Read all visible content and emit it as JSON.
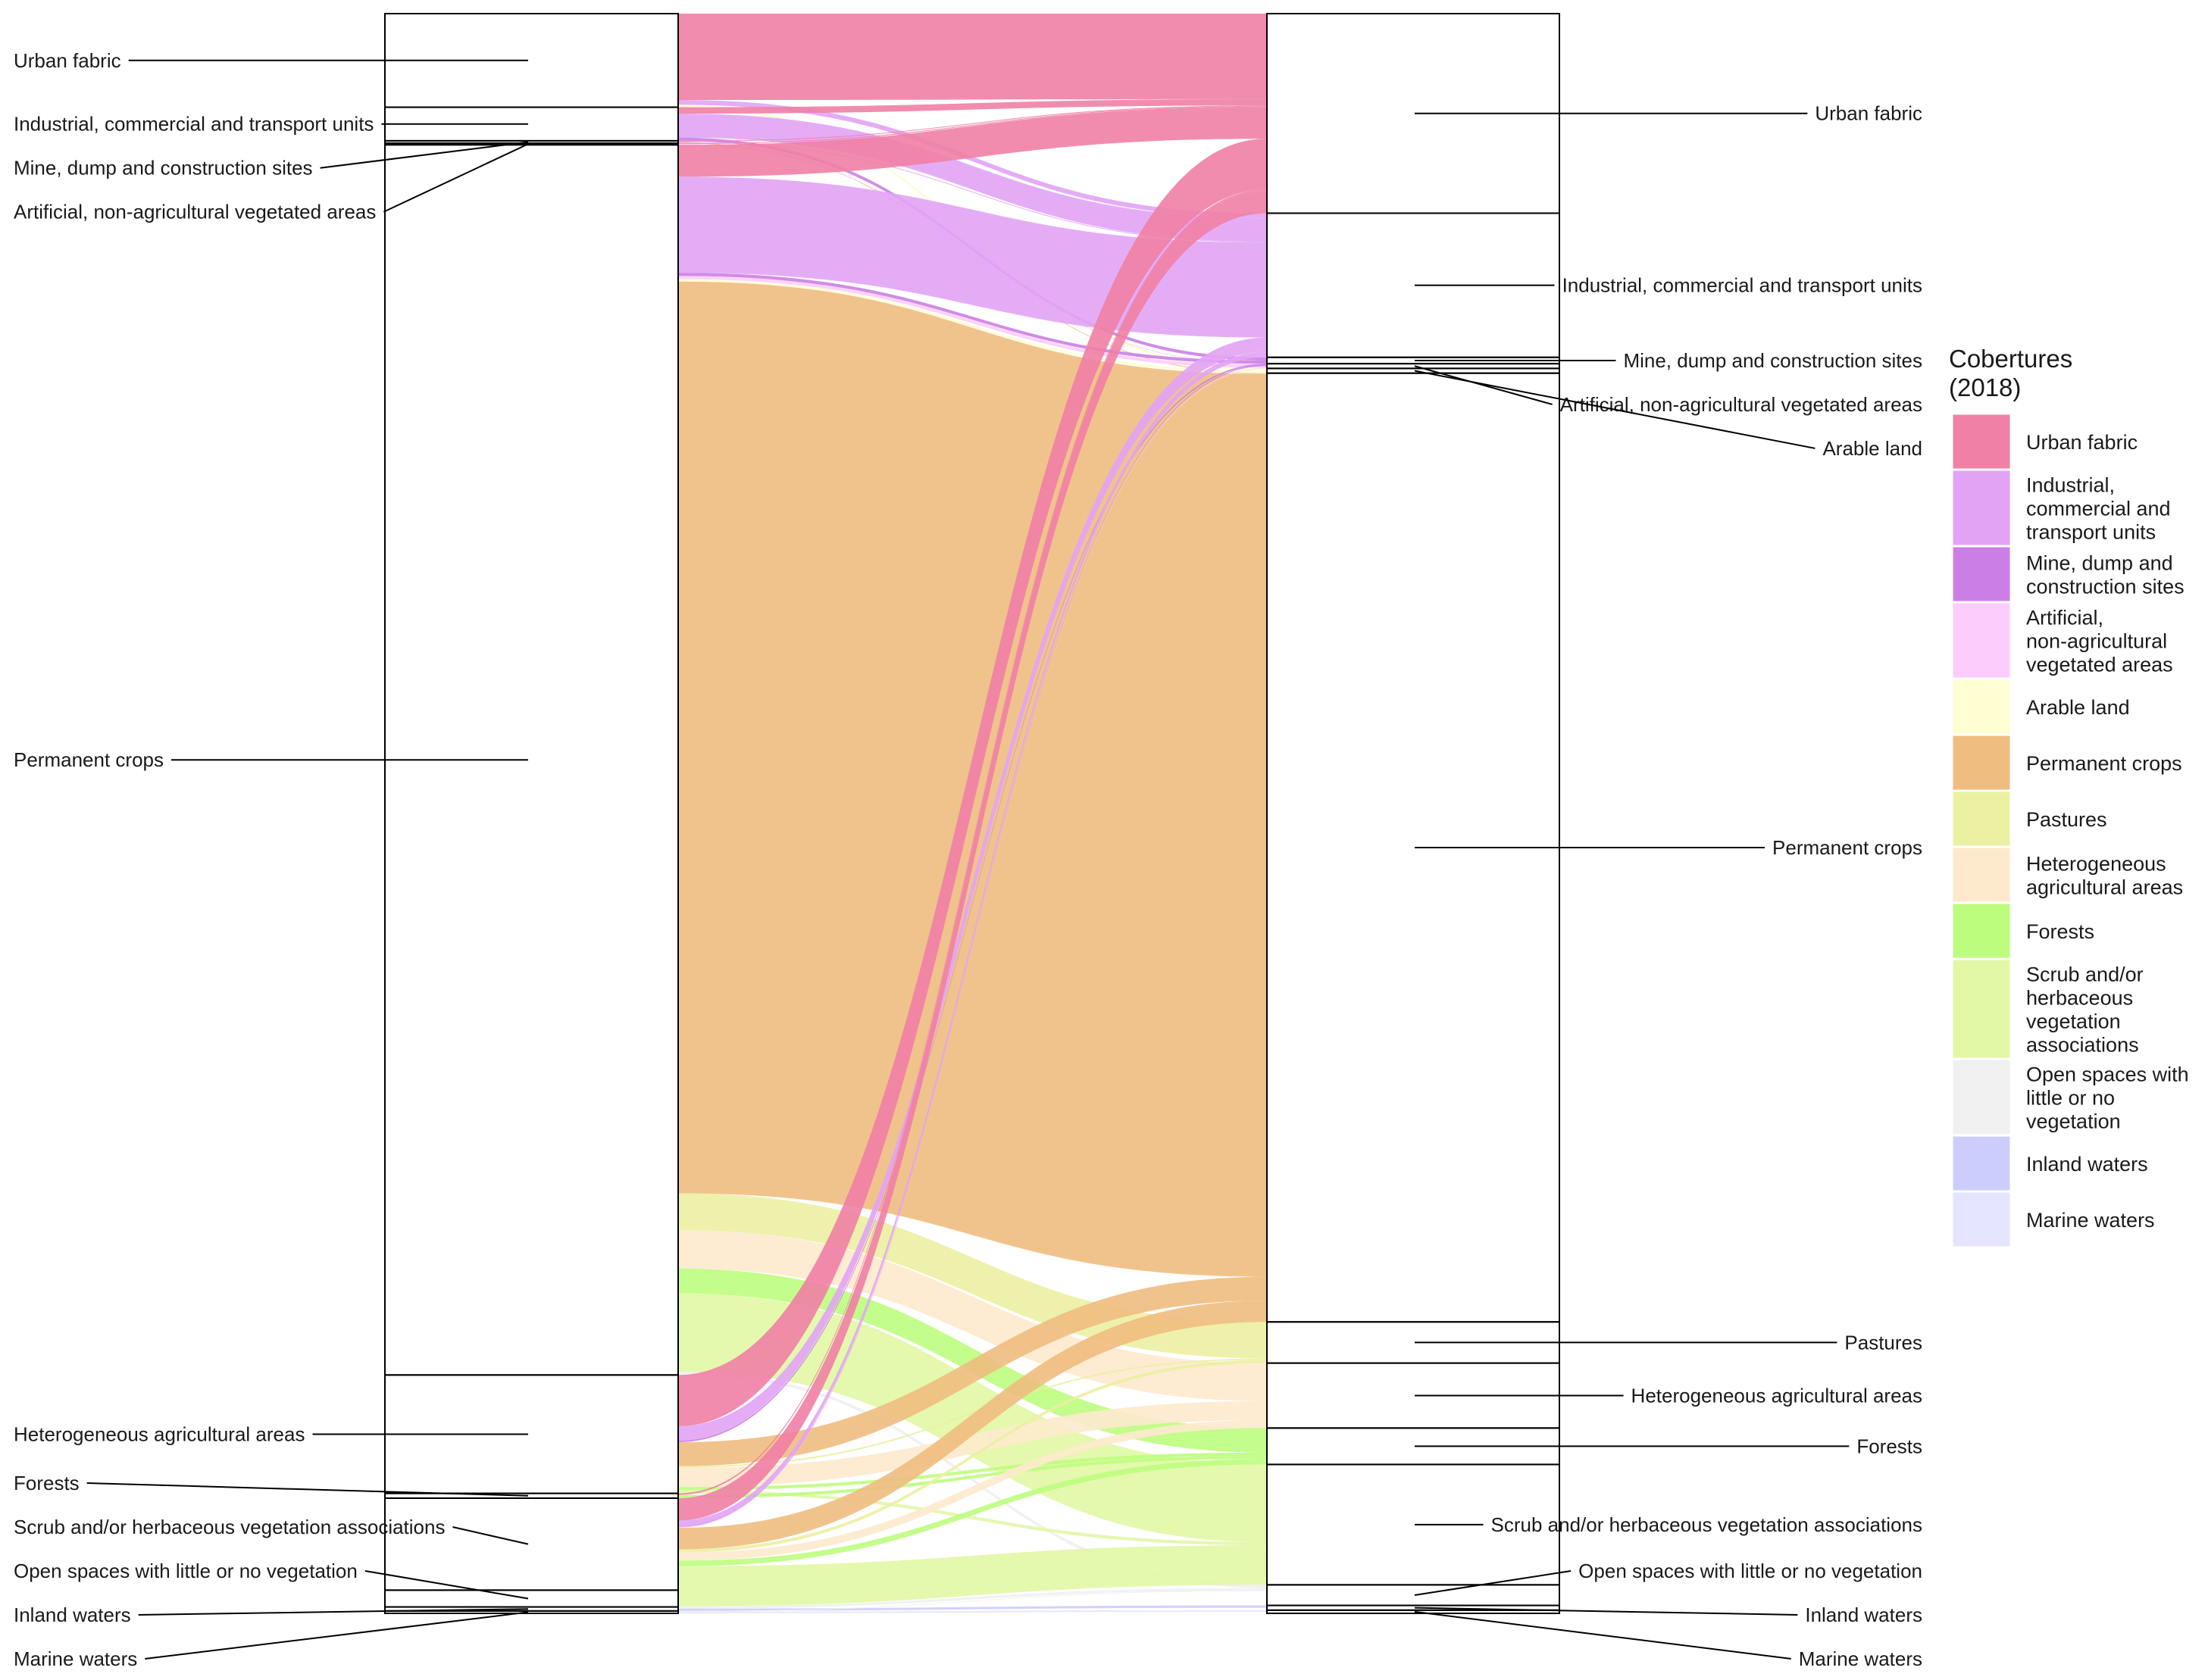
{
  "chart_data": {
    "type": "alluvial",
    "legend": {
      "title": [
        "Cobertures",
        "(2018)"
      ],
      "placement": "right",
      "items": [
        {
          "name": "Urban fabric",
          "lines": [
            "Urban fabric"
          ],
          "color": "#F080A5"
        },
        {
          "name": "Industrial, commercial and transport units",
          "lines": [
            "Industrial,",
            "commercial and",
            "transport units"
          ],
          "color": "#E2A3F5"
        },
        {
          "name": "Mine, dump and construction sites",
          "lines": [
            "Mine, dump and",
            "construction sites"
          ],
          "color": "#CB7FE6"
        },
        {
          "name": "Artificial, non-agricultural vegetated areas",
          "lines": [
            "Artificial,",
            "non-agricultural",
            "vegetated areas"
          ],
          "color": "#FCCDFC"
        },
        {
          "name": "Arable land",
          "lines": [
            "Arable land"
          ],
          "color": "#FEFED2"
        },
        {
          "name": "Permanent crops",
          "lines": [
            "Permanent crops"
          ],
          "color": "#F0BD80"
        },
        {
          "name": "Pastures",
          "lines": [
            "Pastures"
          ],
          "color": "#EBF0A2"
        },
        {
          "name": "Heterogeneous agricultural areas",
          "lines": [
            "Heterogeneous",
            "agricultural areas"
          ],
          "color": "#FDEACD"
        },
        {
          "name": "Forests",
          "lines": [
            "Forests"
          ],
          "color": "#BDFD7E"
        },
        {
          "name": "Scrub and/or herbaceous vegetation associations",
          "lines": [
            "Scrub and/or",
            "herbaceous",
            "vegetation",
            "associations"
          ],
          "color": "#E1F7A5"
        },
        {
          "name": "Open spaces with little or no vegetation",
          "lines": [
            "Open spaces with",
            "little or no",
            "vegetation"
          ],
          "color": "#F0F0F0"
        },
        {
          "name": "Inland waters",
          "lines": [
            "Inland waters"
          ],
          "color": "#CDCDFD"
        },
        {
          "name": "Marine waters",
          "lines": [
            "Marine waters"
          ],
          "color": "#E4E4FE"
        }
      ]
    },
    "axis_left": {
      "strata": [
        {
          "name": "Urban fabric",
          "value": 5.85
        },
        {
          "name": "Industrial, commercial and transport units",
          "value": 2.1
        },
        {
          "name": "Mine, dump and construction sites",
          "value": 0.15
        },
        {
          "name": "Artificial, non-agricultural vegetated areas",
          "value": 0.1
        },
        {
          "name": "Permanent crops",
          "value": 76.9
        },
        {
          "name": "Heterogeneous agricultural areas",
          "value": 7.4
        },
        {
          "name": "Forests",
          "value": 0.3
        },
        {
          "name": "Scrub and/or herbaceous vegetation associations",
          "value": 5.75
        },
        {
          "name": "Open spaces with little or no vegetation",
          "value": 1.05
        },
        {
          "name": "Inland waters",
          "value": 0.25
        },
        {
          "name": "Marine waters",
          "value": 0.15
        }
      ]
    },
    "axis_right": {
      "strata": [
        {
          "name": "Urban fabric",
          "value": 12.6
        },
        {
          "name": "Industrial, commercial and transport units",
          "value": 9.1
        },
        {
          "name": "Mine, dump and construction sites",
          "value": 0.4
        },
        {
          "name": "Artificial, non-agricultural vegetated areas",
          "value": 0.3
        },
        {
          "name": "Arable land",
          "value": 0.3
        },
        {
          "name": "Permanent crops",
          "value": 59.9
        },
        {
          "name": "Pastures",
          "value": 2.6
        },
        {
          "name": "Heterogeneous agricultural areas",
          "value": 4.1
        },
        {
          "name": "Forests",
          "value": 2.3
        },
        {
          "name": "Scrub and/or herbaceous vegetation associations",
          "value": 7.6
        },
        {
          "name": "Open spaces with little or no vegetation",
          "value": 1.3
        },
        {
          "name": "Inland waters",
          "value": 0.3
        },
        {
          "name": "Marine waters",
          "value": 0.2
        }
      ]
    },
    "flows": [
      {
        "from": "Urban fabric",
        "to": "Urban fabric",
        "value": 5.4
      },
      {
        "from": "Urban fabric",
        "to": "Industrial, commercial and transport units",
        "value": 0.3
      },
      {
        "from": "Urban fabric",
        "to": "Arable land",
        "value": 0.15
      },
      {
        "from": "Industrial, commercial and transport units",
        "to": "Industrial, commercial and transport units",
        "value": 1.5
      },
      {
        "from": "Industrial, commercial and transport units",
        "to": "Urban fabric",
        "value": 0.4
      },
      {
        "from": "Industrial, commercial and transport units",
        "to": "Mine, dump and construction sites",
        "value": 0.2
      },
      {
        "from": "Mine, dump and construction sites",
        "to": "Urban fabric",
        "value": 0.05
      },
      {
        "from": "Mine, dump and construction sites",
        "to": "Industrial, commercial and transport units",
        "value": 0.05
      },
      {
        "from": "Mine, dump and construction sites",
        "to": "Permanent crops",
        "value": 0.05
      },
      {
        "from": "Artificial, non-agricultural vegetated areas",
        "to": "Urban fabric",
        "value": 0.05
      },
      {
        "from": "Artificial, non-agricultural vegetated areas",
        "to": "Artificial, non-agricultural vegetated areas",
        "value": 0.05
      },
      {
        "from": "Permanent crops",
        "to": "Urban fabric",
        "value": 2.0
      },
      {
        "from": "Permanent crops",
        "to": "Industrial, commercial and transport units",
        "value": 6.0
      },
      {
        "from": "Permanent crops",
        "to": "Mine, dump and construction sites",
        "value": 0.2
      },
      {
        "from": "Permanent crops",
        "to": "Artificial, non-agricultural vegetated areas",
        "value": 0.2
      },
      {
        "from": "Permanent crops",
        "to": "Arable land",
        "value": 0.15
      },
      {
        "from": "Permanent crops",
        "to": "Permanent crops",
        "value": 57.0
      },
      {
        "from": "Permanent crops",
        "to": "Pastures",
        "value": 2.3
      },
      {
        "from": "Permanent crops",
        "to": "Heterogeneous agricultural areas",
        "value": 2.4
      },
      {
        "from": "Permanent crops",
        "to": "Forests",
        "value": 1.55
      },
      {
        "from": "Permanent crops",
        "to": "Scrub and/or herbaceous vegetation associations",
        "value": 4.9
      },
      {
        "from": "Permanent crops",
        "to": "Open spaces with little or no vegetation",
        "value": 0.2
      },
      {
        "from": "Heterogeneous agricultural areas",
        "to": "Urban fabric",
        "value": 3.2
      },
      {
        "from": "Heterogeneous agricultural areas",
        "to": "Industrial, commercial and transport units",
        "value": 0.9
      },
      {
        "from": "Heterogeneous agricultural areas",
        "to": "Mine, dump and construction sites",
        "value": 0.1
      },
      {
        "from": "Heterogeneous agricultural areas",
        "to": "Permanent crops",
        "value": 1.5
      },
      {
        "from": "Heterogeneous agricultural areas",
        "to": "Pastures",
        "value": 0.1
      },
      {
        "from": "Heterogeneous agricultural areas",
        "to": "Heterogeneous agricultural areas",
        "value": 1.2
      },
      {
        "from": "Heterogeneous agricultural areas",
        "to": "Forests",
        "value": 0.2
      },
      {
        "from": "Heterogeneous agricultural areas",
        "to": "Scrub and/or herbaceous vegetation associations",
        "value": 0.2
      },
      {
        "from": "Forests",
        "to": "Urban fabric",
        "value": 0.1
      },
      {
        "from": "Forests",
        "to": "Forests",
        "value": 0.2
      },
      {
        "from": "Scrub and/or herbaceous vegetation associations",
        "to": "Urban fabric",
        "value": 1.4
      },
      {
        "from": "Scrub and/or herbaceous vegetation associations",
        "to": "Industrial, commercial and transport units",
        "value": 0.35
      },
      {
        "from": "Scrub and/or herbaceous vegetation associations",
        "to": "Mine, dump and construction sites",
        "value": 0.05
      },
      {
        "from": "Scrub and/or herbaceous vegetation associations",
        "to": "Artificial, non-agricultural vegetated areas",
        "value": 0.05
      },
      {
        "from": "Scrub and/or herbaceous vegetation associations",
        "to": "Permanent crops",
        "value": 1.35
      },
      {
        "from": "Scrub and/or herbaceous vegetation associations",
        "to": "Pastures",
        "value": 0.2
      },
      {
        "from": "Scrub and/or herbaceous vegetation associations",
        "to": "Heterogeneous agricultural areas",
        "value": 0.5
      },
      {
        "from": "Scrub and/or herbaceous vegetation associations",
        "to": "Forests",
        "value": 0.35
      },
      {
        "from": "Scrub and/or herbaceous vegetation associations",
        "to": "Scrub and/or herbaceous vegetation associations",
        "value": 1.5
      },
      {
        "from": "Open spaces with little or no vegetation",
        "to": "Scrub and/or herbaceous vegetation associations",
        "value": 1.0
      },
      {
        "from": "Open spaces with little or no vegetation",
        "to": "Open spaces with little or no vegetation",
        "value": 0.05
      },
      {
        "from": "Inland waters",
        "to": "Open spaces with little or no vegetation",
        "value": 0.1
      },
      {
        "from": "Inland waters",
        "to": "Inland waters",
        "value": 0.15
      },
      {
        "from": "Marine waters",
        "to": "Open spaces with little or no vegetation",
        "value": 0.05
      },
      {
        "from": "Marine waters",
        "to": "Marine waters",
        "value": 0.1
      }
    ]
  }
}
